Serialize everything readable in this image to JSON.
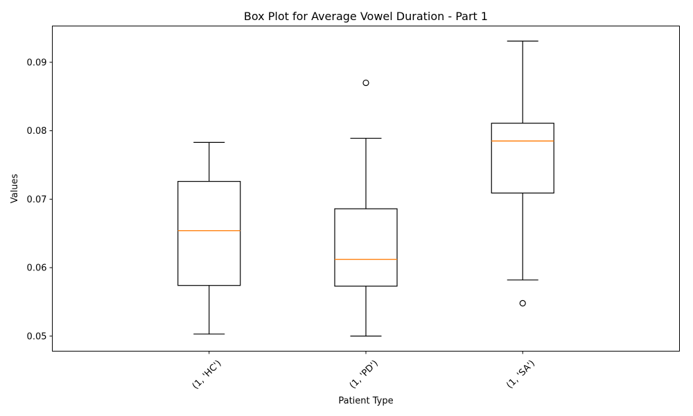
{
  "chart_data": {
    "type": "box",
    "title": "Box Plot for Average Vowel Duration - Part 1",
    "xlabel": "Patient Type",
    "ylabel": "Values",
    "ylim": [
      0.0478,
      0.0953
    ],
    "yticks": [
      0.05,
      0.06,
      0.07,
      0.08,
      0.09
    ],
    "ytick_labels": [
      "0.05",
      "0.06",
      "0.07",
      "0.08",
      "0.09"
    ],
    "grid": false,
    "categories": [
      "(1, 'HC')",
      "(1, 'PD')",
      "(1, 'SA')"
    ],
    "boxes": [
      {
        "whisker_low": 0.0503,
        "q1": 0.0574,
        "median": 0.0654,
        "q3": 0.0726,
        "whisker_high": 0.0783,
        "outliers": []
      },
      {
        "whisker_low": 0.05,
        "q1": 0.0573,
        "median": 0.0612,
        "q3": 0.0686,
        "whisker_high": 0.0789,
        "outliers": [
          0.087
        ]
      },
      {
        "whisker_low": 0.0582,
        "q1": 0.0709,
        "median": 0.0785,
        "q3": 0.0811,
        "whisker_high": 0.0931,
        "outliers": [
          0.0548
        ]
      }
    ],
    "colors": {
      "box": "#000000",
      "median": "#ff7f0e",
      "axes": "#000000",
      "background": "#ffffff"
    }
  }
}
